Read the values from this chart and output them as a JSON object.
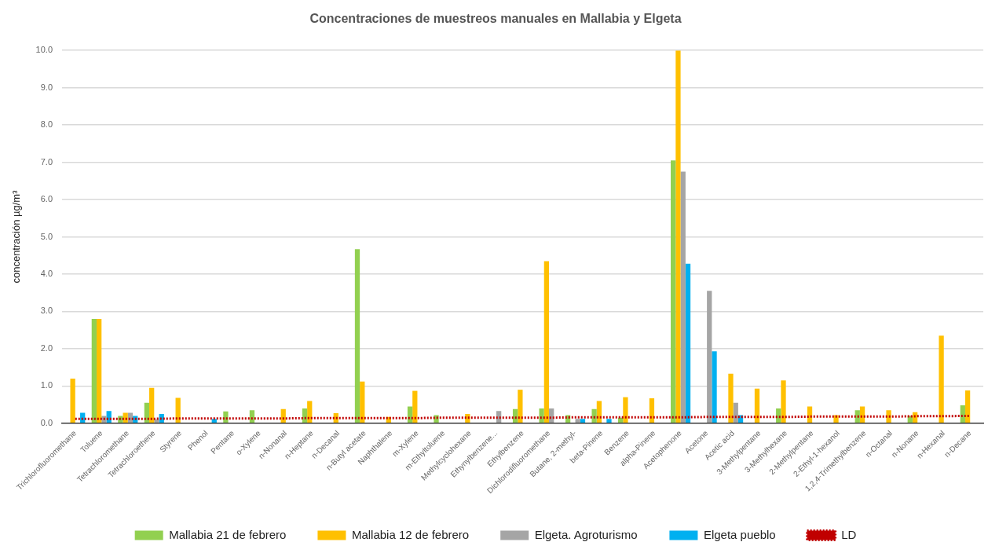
{
  "chart_data": {
    "type": "bar",
    "title": "Concentraciones de muestreos manuales en Mallabia y Elgeta",
    "ylabel": "concentración µg/m³",
    "categories": [
      "Trichlorofluoromethane",
      "Toluene",
      "Tetrachloromethane",
      "Tetrachloroethene",
      "Styrene",
      "Phenol",
      "Pentane",
      "o-Xylene",
      "n-Nonanal",
      "n-Heptane",
      "n-Decanal",
      "n-Butyl acetate",
      "Naphthalene",
      "m-Xylene",
      "m-Ethyltoluene",
      "Methylcyclohexane",
      "Ethynylbenzene...",
      "Ethylbenzene",
      "Dichlorodifluoromethane",
      "Butane, 2-methyl-",
      "beta-Pinene",
      "Benzene",
      "alpha-Pinene",
      "Acetophenone",
      "Acetone",
      "Acetic acid",
      "3-Methylpentane",
      "3-Methylhexane",
      "2-Methylpentane",
      "2-Ethyl-1-hexanol",
      "1,2,4-Trimethylbenzene",
      "n-Octanal",
      "n-Nonane",
      "n-Hexanal",
      "n-Decane"
    ],
    "series": [
      {
        "name": "Mallabia 21 de febrero",
        "color": "#92d050",
        "values": [
          null,
          2.8,
          0.2,
          0.55,
          null,
          null,
          0.32,
          0.35,
          null,
          0.4,
          null,
          4.67,
          null,
          0.45,
          0.22,
          null,
          null,
          0.38,
          0.4,
          0.22,
          0.38,
          0.15,
          null,
          7.05,
          null,
          null,
          null,
          0.4,
          null,
          null,
          0.35,
          null,
          0.2,
          null,
          0.48
        ]
      },
      {
        "name": "Mallabia 12 de febrero",
        "color": "#ffc000",
        "values": [
          1.2,
          2.8,
          0.28,
          0.95,
          0.68,
          null,
          null,
          null,
          0.38,
          0.6,
          0.27,
          1.12,
          0.17,
          0.87,
          null,
          0.25,
          null,
          0.9,
          4.35,
          null,
          0.6,
          0.7,
          0.67,
          10.0,
          null,
          1.33,
          0.93,
          1.15,
          0.45,
          0.22,
          0.45,
          0.35,
          0.3,
          2.35,
          0.88
        ]
      },
      {
        "name": "Elgeta. Agroturismo",
        "color": "#a5a5a5",
        "values": [
          null,
          0.2,
          0.28,
          0.1,
          null,
          null,
          null,
          null,
          null,
          null,
          null,
          null,
          null,
          null,
          null,
          null,
          0.33,
          null,
          0.4,
          0.12,
          null,
          null,
          null,
          6.75,
          3.55,
          0.55,
          null,
          null,
          null,
          null,
          null,
          null,
          null,
          null,
          null
        ]
      },
      {
        "name": "Elgeta pueblo",
        "color": "#00b0f0",
        "values": [
          0.28,
          0.33,
          0.2,
          0.25,
          null,
          0.12,
          null,
          null,
          null,
          null,
          null,
          null,
          null,
          null,
          null,
          null,
          null,
          null,
          null,
          0.12,
          0.12,
          null,
          null,
          4.28,
          1.93,
          0.22,
          null,
          null,
          null,
          null,
          null,
          null,
          null,
          null,
          null
        ]
      },
      {
        "name": "LD",
        "type": "line",
        "color": "#c00000",
        "line_style": "dotted",
        "marker": "none",
        "values": [
          0.12,
          0.12,
          0.12,
          0.12,
          0.13,
          0.13,
          0.13,
          0.13,
          0.13,
          0.14,
          0.14,
          0.14,
          0.14,
          0.14,
          0.15,
          0.15,
          0.15,
          0.15,
          0.15,
          0.16,
          0.16,
          0.16,
          0.16,
          0.16,
          0.17,
          0.17,
          0.17,
          0.17,
          0.18,
          0.18,
          0.18,
          0.18,
          0.19,
          0.19,
          0.2
        ]
      }
    ],
    "ylim": [
      0,
      10
    ],
    "yticks": [
      {
        "value": 0,
        "label": "0.0"
      },
      {
        "value": 1,
        "label": "1.0"
      },
      {
        "value": 2,
        "label": "2.0"
      },
      {
        "value": 3,
        "label": "3.0"
      },
      {
        "value": 4,
        "label": "4.0"
      },
      {
        "value": 5,
        "label": "5.0"
      },
      {
        "value": 6,
        "label": "6.0"
      },
      {
        "value": 7,
        "label": "7.0"
      },
      {
        "value": 8,
        "label": "8.0"
      },
      {
        "value": 9,
        "label": "9.0"
      },
      {
        "value": 10,
        "label": "10.0"
      }
    ],
    "grid": "y",
    "legend": "bottom"
  }
}
